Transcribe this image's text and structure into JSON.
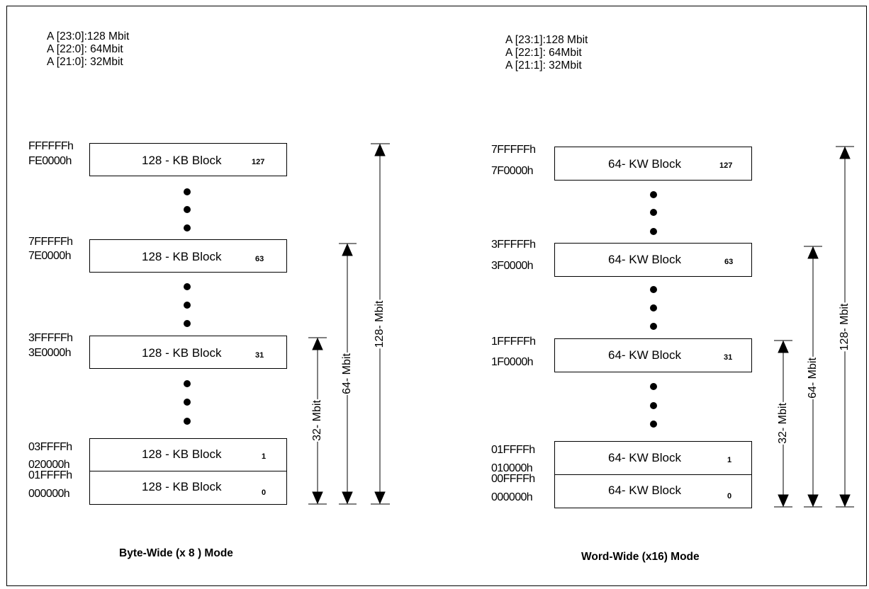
{
  "left": {
    "header": [
      "A [23:0]:128 Mbit",
      "A [22:0]:  64Mbit",
      "A [21:0]:  32Mbit"
    ],
    "blocks": [
      {
        "top_addr": "FFFFFFh",
        "bottom_addr": "FE0000h",
        "label": "128 - KB Block",
        "num": "127"
      },
      {
        "top_addr": "7FFFFFh",
        "bottom_addr": "7E0000h",
        "label": "128 - KB Block",
        "num": "63"
      },
      {
        "top_addr": "3FFFFFh",
        "bottom_addr": "3E0000h",
        "label": "128 - KB Block",
        "num": "31"
      },
      {
        "top_addr": "03FFFFh",
        "bottom_addr": "020000h",
        "label": "128 - KB Block",
        "num": "1"
      },
      {
        "top_addr": "01FFFFh",
        "bottom_addr": "000000h",
        "label": "128 - KB Block",
        "num": "0"
      }
    ],
    "arrows": [
      "32- Mbit",
      "64- Mbit",
      "128- Mbit"
    ],
    "title": "Byte-Wide  (x 8 ) Mode"
  },
  "right": {
    "header": [
      "A [23:1]:128 Mbit",
      "A [22:1]:   64Mbit",
      "A [21:1]:   32Mbit"
    ],
    "blocks": [
      {
        "top_addr": "7FFFFFh",
        "bottom_addr": "7F0000h",
        "label": "64- KW Block",
        "num": "127"
      },
      {
        "top_addr": "3FFFFFh",
        "bottom_addr": "3F0000h",
        "label": "64- KW Block",
        "num": "63"
      },
      {
        "top_addr": "1FFFFFh",
        "bottom_addr": "1F0000h",
        "label": "64- KW Block",
        "num": "31"
      },
      {
        "top_addr": "01FFFFh",
        "bottom_addr": "010000h",
        "label": "64- KW Block",
        "num": "1"
      },
      {
        "top_addr": "00FFFFh",
        "bottom_addr": "000000h",
        "label": "64- KW Block",
        "num": "0"
      }
    ],
    "arrows": [
      "32- Mbit",
      "64- Mbit",
      "128- Mbit"
    ],
    "title": "Word-Wide (x16) Mode"
  }
}
